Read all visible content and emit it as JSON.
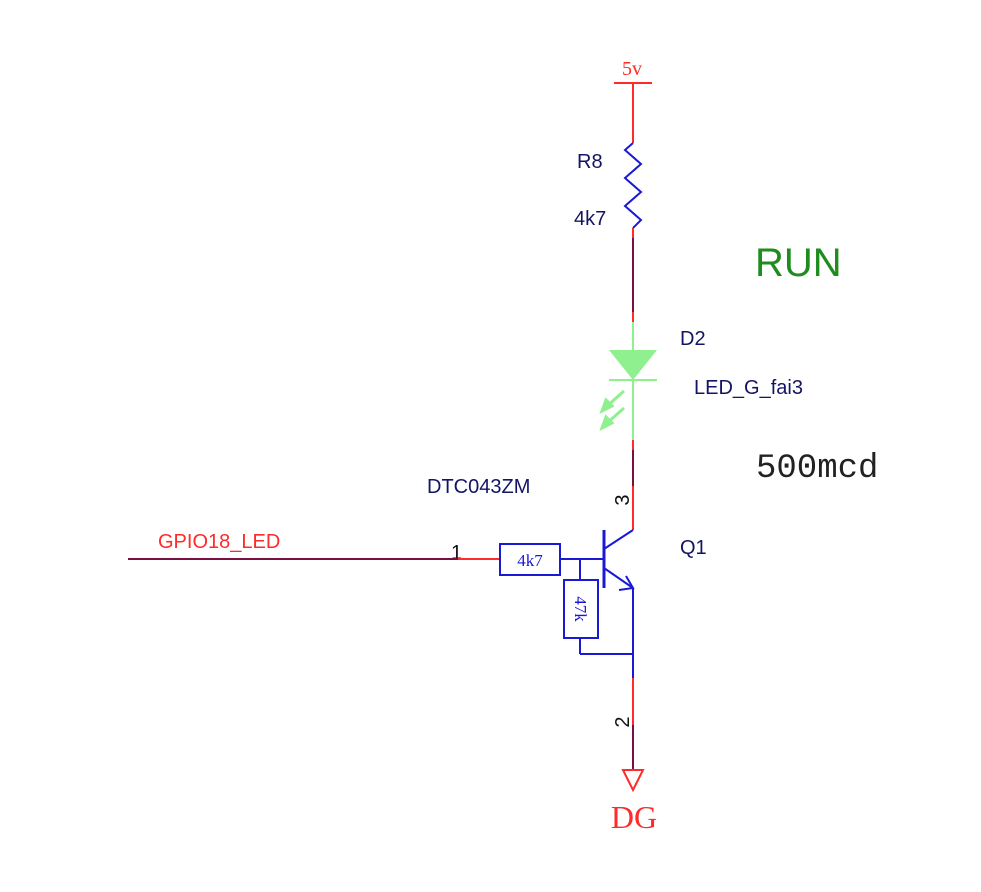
{
  "power": {
    "label": "5v",
    "color": "#ff2a2a"
  },
  "resistor_r8": {
    "ref": "R8",
    "value": "4k7"
  },
  "run_label": "RUN",
  "led_d2": {
    "ref": "D2",
    "part": "LED_G_fai3",
    "brightness": "500mcd",
    "color": "#8ef08e"
  },
  "transistor_q1": {
    "ref": "Q1",
    "part": "DTC043ZM",
    "r_base": "4k7",
    "r_be": "47k",
    "pin_base": "1",
    "pin_collector": "3",
    "pin_emitter": "2"
  },
  "net_gpio": "GPIO18_LED",
  "ground_label": "DG",
  "colors": {
    "wire_red": "#ff2a2a",
    "wire_dark": "#7a1040",
    "symbol_blue": "#1a1ad6",
    "label_navy": "#141464",
    "run_green": "#1e8c1e"
  }
}
